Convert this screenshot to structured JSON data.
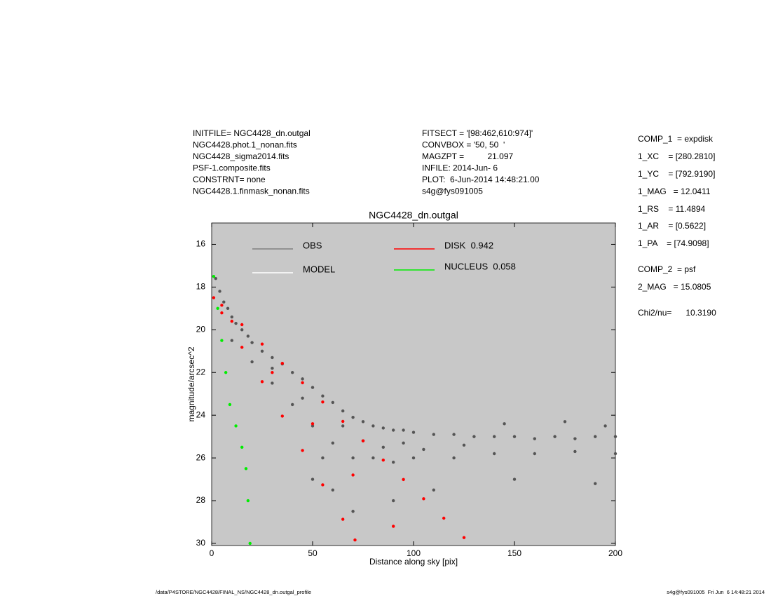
{
  "header_left": [
    "INITFILE= NGC4428_dn.outgal",
    "NGC4428.phot.1_nonan.fits",
    "NGC4428_sigma2014.fits",
    "PSF-1.composite.fits",
    "CONSTRNT= none",
    "NGC4428.1.finmask_nonan.fits"
  ],
  "header_mid": [
    "FITSECT = '[98:462,610:974]'",
    "CONVBOX = '50, 50  '",
    "MAGZPT =          21.097",
    "INFILE: 2014-Jun- 6",
    "PLOT:  6-Jun-2014 14:48:21.00",
    "s4g@fys091005"
  ],
  "params": [
    "COMP_1  = expdisk",
    "1_XC    = [280.2810]",
    "1_YC    = [792.9190]",
    "1_MAG   = 12.0411",
    "1_RS    = 11.4894",
    "1_AR    = [0.5622]",
    "1_PA    = [74.9098]",
    "COMP_2  = psf",
    "2_MAG   = 15.0805",
    "Chi2/nu=      10.3190"
  ],
  "footer_left": "/data/P4STORE/NGC4428/FINAL_NS/NGC4428_dn.outgal_profile",
  "footer_right": "s4g@fys091005  Fri Jun  6 14:48:21 2014",
  "chart_data": {
    "type": "scatter",
    "title": "NGC4428_dn.outgal",
    "x_label": "Distance along sky [pix]",
    "y_label": "magnitude/arcsec^2",
    "xlim": [
      0,
      200
    ],
    "ylim": [
      15,
      30.1
    ],
    "y_inverted": true,
    "xticks": [
      0,
      50,
      100,
      150,
      200
    ],
    "yticks": [
      16,
      18,
      20,
      22,
      24,
      26,
      28,
      30
    ],
    "background": "#c8c8c8",
    "series": [
      {
        "name": "OBS",
        "color": "#555555",
        "legend_color": "#808080",
        "x": [
          2,
          4,
          6,
          8,
          10,
          12,
          15,
          18,
          20,
          25,
          30,
          35,
          40,
          45,
          50,
          55,
          60,
          65,
          70,
          75,
          80,
          85,
          90,
          95,
          100,
          110,
          120,
          130,
          140,
          150,
          160,
          170,
          180,
          190,
          200,
          10,
          20,
          30,
          40,
          50,
          60,
          70,
          80,
          90,
          100,
          120,
          140,
          160,
          180,
          200,
          60,
          50,
          70,
          90,
          110,
          150,
          190,
          30,
          45,
          55,
          65,
          75,
          85,
          95,
          105,
          125,
          145,
          175,
          195
        ],
        "values": [
          17.6,
          18.2,
          18.7,
          19.0,
          19.4,
          19.7,
          20.0,
          20.3,
          20.6,
          21.0,
          21.3,
          21.6,
          22.0,
          22.3,
          22.7,
          23.1,
          23.4,
          23.8,
          24.1,
          24.3,
          24.5,
          24.6,
          24.7,
          24.7,
          24.8,
          24.9,
          24.9,
          25.0,
          25.0,
          25.0,
          25.1,
          25.0,
          25.1,
          25.0,
          25.0,
          20.5,
          21.5,
          22.5,
          23.5,
          24.5,
          25.3,
          26.0,
          26.0,
          26.2,
          26.0,
          26.0,
          25.8,
          25.8,
          25.7,
          25.8,
          27.5,
          27.0,
          28.5,
          28.0,
          27.5,
          27.0,
          27.2,
          21.8,
          23.2,
          26.0,
          24.5,
          25.2,
          25.5,
          25.3,
          25.6,
          25.4,
          24.4,
          24.3,
          24.5
        ]
      },
      {
        "name": "MODEL",
        "color": "#ffffff",
        "legend_color": "#ffffff",
        "x": [],
        "values": []
      },
      {
        "name": "DISK  0.942",
        "color": "#ff0000",
        "legend_color": "#ff0000",
        "x": [
          1,
          5,
          15,
          25,
          35,
          45,
          55,
          65,
          75,
          85,
          95,
          105,
          115,
          125,
          5,
          15,
          25,
          35,
          45,
          55,
          65,
          71,
          10,
          30,
          50,
          70,
          90
        ],
        "values": [
          18.5,
          18.85,
          19.76,
          20.67,
          21.57,
          22.48,
          23.38,
          24.29,
          25.2,
          26.1,
          27.01,
          27.91,
          28.82,
          29.73,
          19.21,
          20.82,
          22.43,
          24.04,
          25.65,
          27.26,
          28.87,
          29.84,
          19.6,
          22.0,
          24.4,
          26.8,
          29.2
        ]
      },
      {
        "name": "NUCLEUS  0.058",
        "color": "#00ee00",
        "legend_color": "#00ee00",
        "x": [
          1,
          3,
          5,
          7,
          9,
          12,
          15,
          17,
          18,
          19
        ],
        "values": [
          17.5,
          19.0,
          20.5,
          22.0,
          23.5,
          24.5,
          25.5,
          26.5,
          28.0,
          30.0
        ]
      }
    ]
  }
}
